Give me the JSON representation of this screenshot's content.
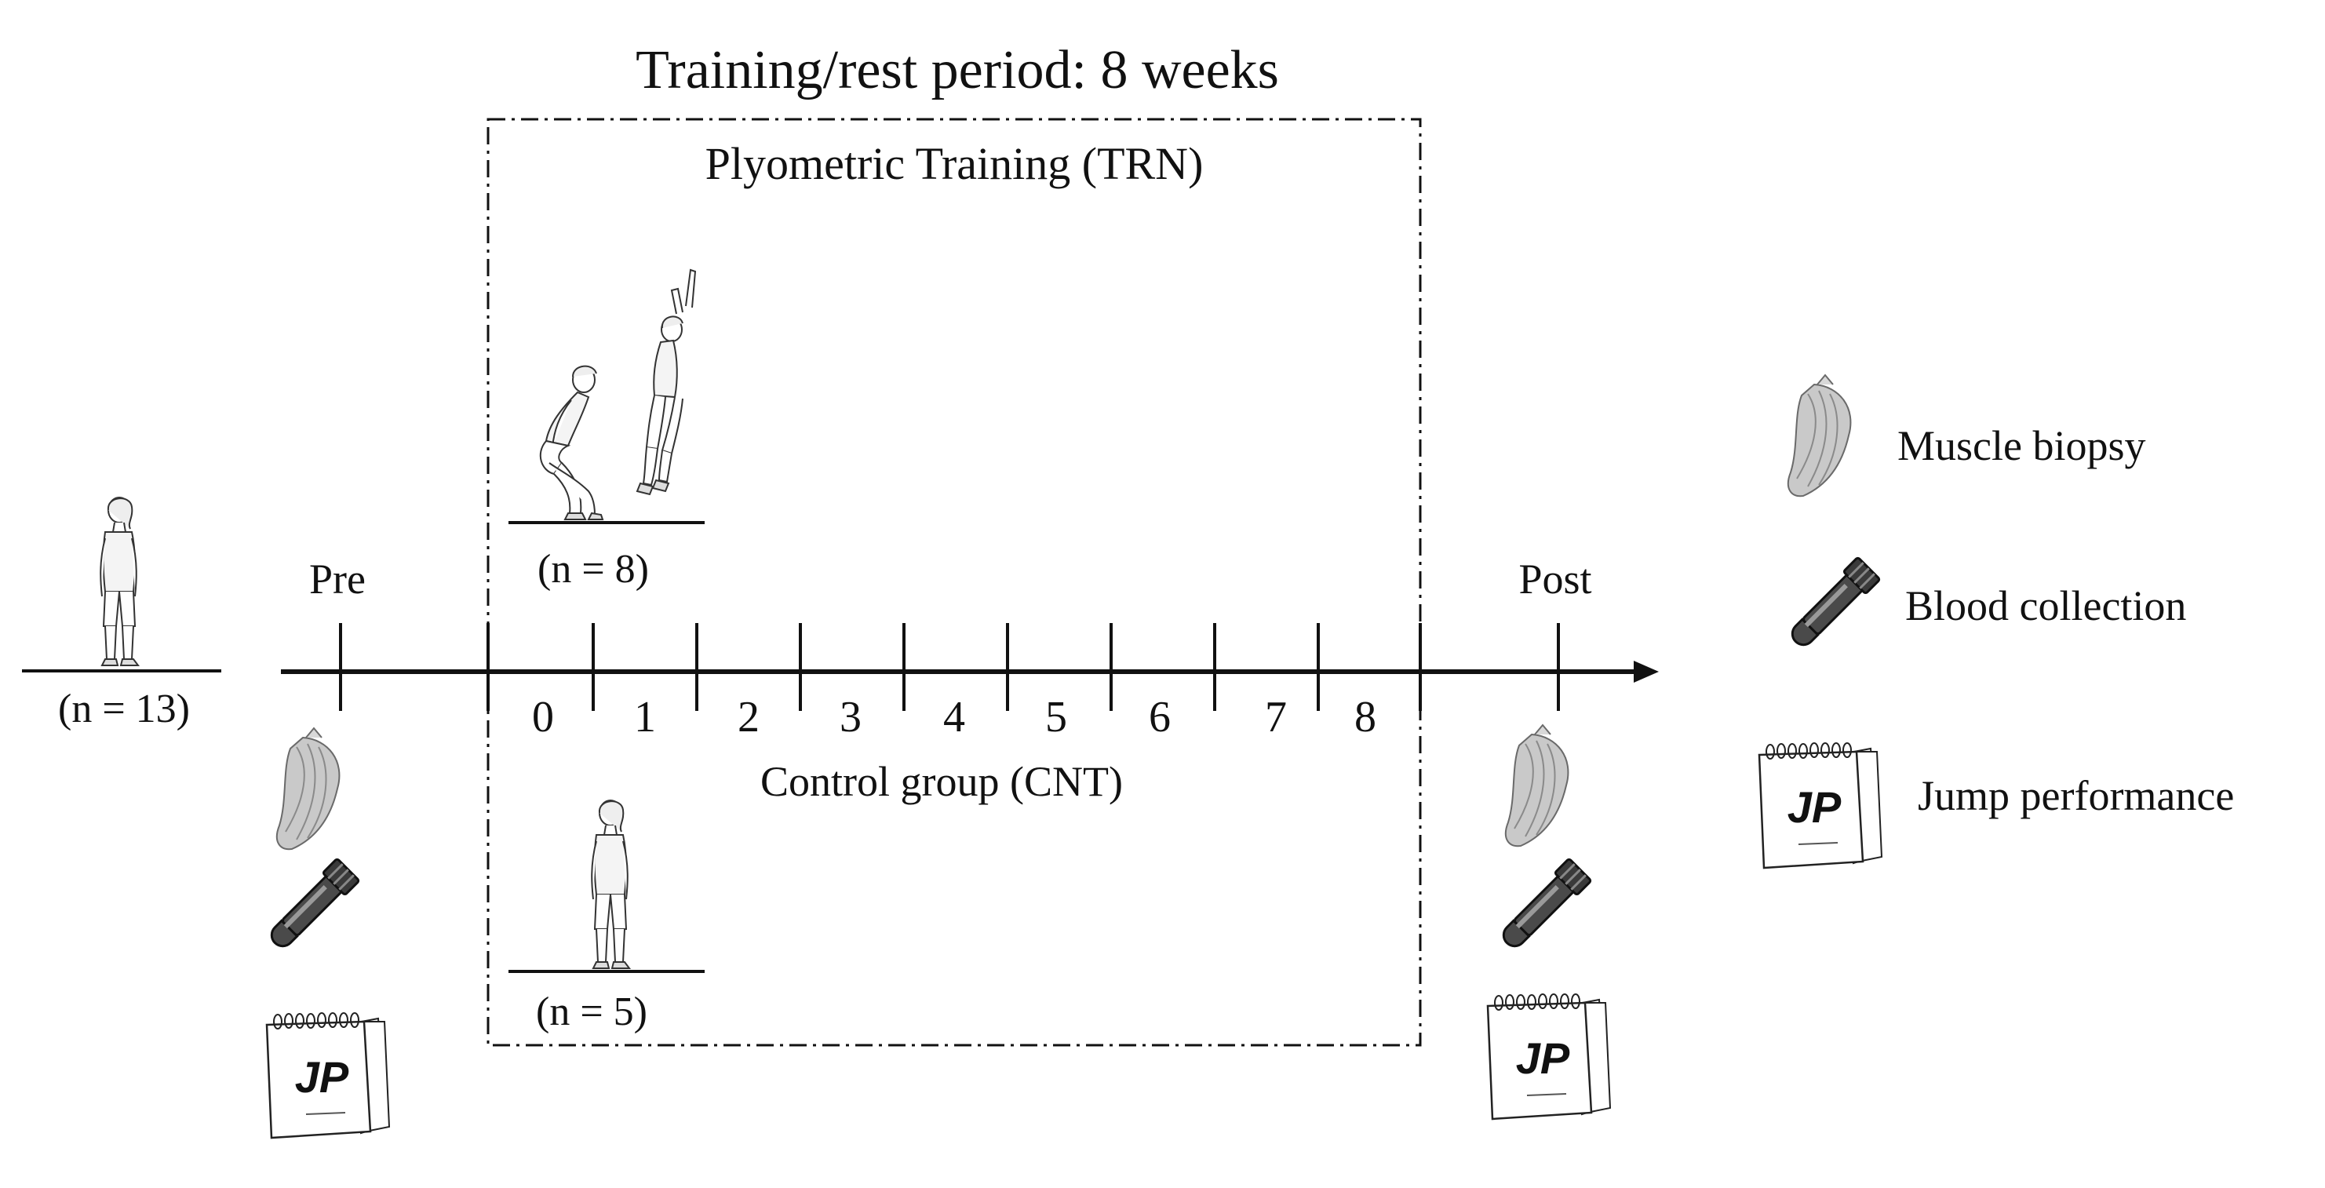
{
  "title": "Training/rest period: 8 weeks",
  "groups": {
    "training": {
      "label": "Plyometric Training (TRN)",
      "n": "(n = 8)"
    },
    "control": {
      "label": "Control group (CNT)",
      "n": "(n = 5)"
    },
    "total": {
      "n": "(n = 13)"
    }
  },
  "timeline": {
    "pre_label": "Pre",
    "post_label": "Post",
    "weeks": [
      "0",
      "1",
      "2",
      "3",
      "4",
      "5",
      "6",
      "7",
      "8"
    ]
  },
  "legend": [
    {
      "icon": "muscle-icon",
      "label": "Muscle biopsy"
    },
    {
      "icon": "blood-tube-icon",
      "label": "Blood collection"
    },
    {
      "icon": "notebook-icon",
      "label": "Jump performance"
    }
  ],
  "notebook_text": "JP",
  "colors": {
    "ink": "#111111",
    "muscle": "#b5b5b5",
    "tube": "#3a3a3a"
  }
}
